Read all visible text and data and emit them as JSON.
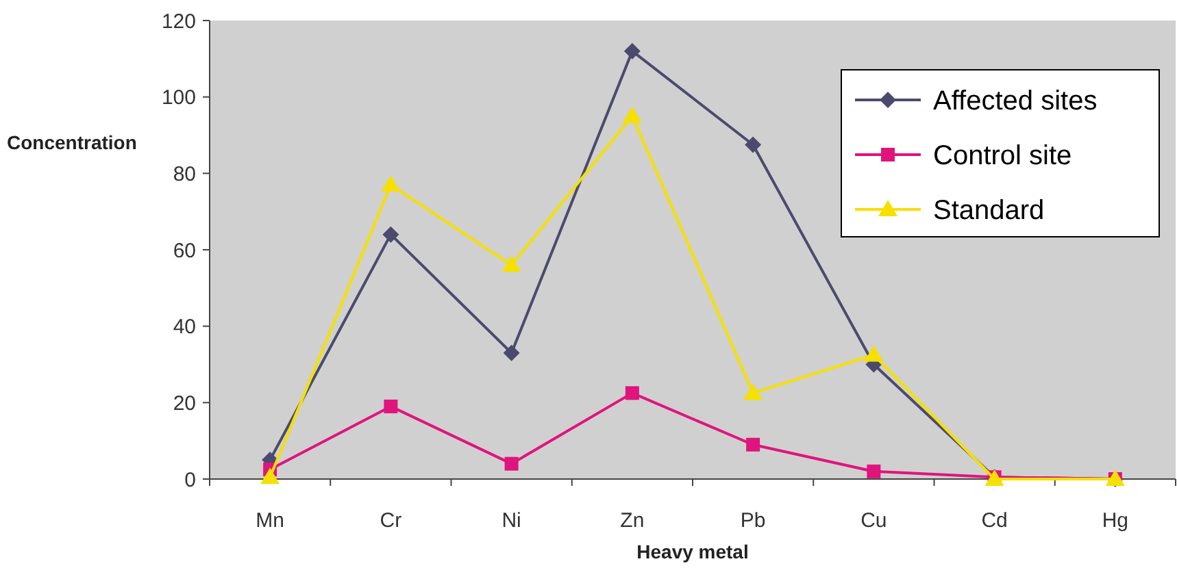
{
  "chart_data": {
    "type": "line",
    "xlabel": "Heavy metal",
    "ylabel": "Concentration",
    "categories": [
      "Mn",
      "Cr",
      "Ni",
      "Zn",
      "Pb",
      "Cu",
      "Cd",
      "Hg"
    ],
    "series": [
      {
        "name": "Affected sites",
        "color": "#4b4a6e",
        "marker": "diamond",
        "values": [
          5,
          64,
          33,
          112,
          87.5,
          30,
          0.5,
          0
        ]
      },
      {
        "name": "Control site",
        "color": "#e0147d",
        "marker": "square",
        "values": [
          2.5,
          19,
          4,
          22.5,
          9,
          2,
          0.5,
          0
        ]
      },
      {
        "name": "Standard",
        "color": "#f5e000",
        "marker": "triangle",
        "values": [
          0.5,
          77,
          56,
          95,
          22.5,
          32.5,
          0,
          0
        ]
      }
    ],
    "ylim": [
      0,
      120
    ],
    "yticks": [
      0,
      20,
      40,
      60,
      80,
      100,
      120
    ],
    "grid": false,
    "legend": "top right"
  }
}
